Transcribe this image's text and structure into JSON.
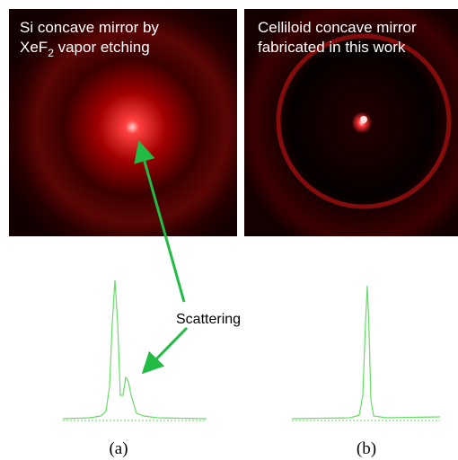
{
  "panel_a": {
    "title_line1": "Si concave mirror by",
    "title_line2": {
      "before": "XeF",
      "sub": "2",
      "after": " vapor etching"
    },
    "caption": "(a)"
  },
  "panel_b": {
    "title_line1": "Celliloid concave mirror",
    "title_line2": "fabricated in this work",
    "caption": "(b)"
  },
  "annotation": "Scattering"
}
